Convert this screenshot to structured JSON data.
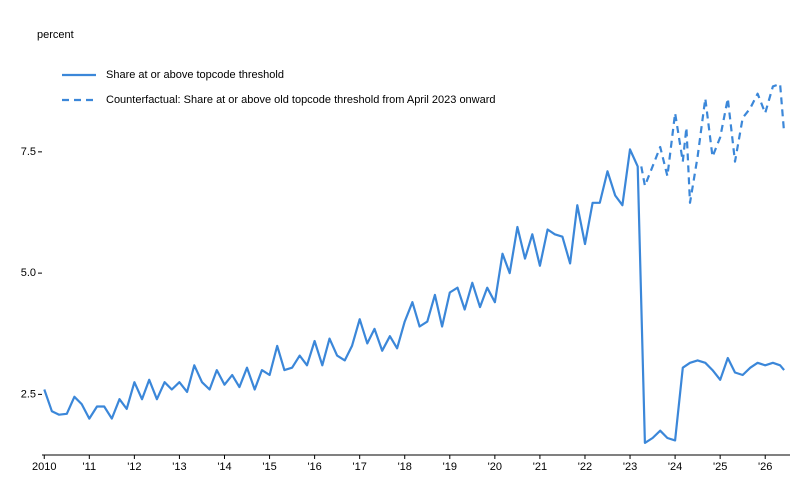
{
  "chart_data": {
    "type": "line",
    "y_label": "percent",
    "xlim": [
      2009.95,
      2026.55
    ],
    "ylim": [
      1.25,
      9.6
    ],
    "xticks": [
      2010,
      {
        "value": 2011,
        "label": "'11"
      },
      {
        "value": 2012,
        "label": "'12"
      },
      {
        "value": 2013,
        "label": "'13"
      },
      {
        "value": 2014,
        "label": "'14"
      },
      {
        "value": 2015,
        "label": "'15"
      },
      {
        "value": 2016,
        "label": "'16"
      },
      {
        "value": 2017,
        "label": "'17"
      },
      {
        "value": 2018,
        "label": "'18"
      },
      {
        "value": 2019,
        "label": "'19"
      },
      {
        "value": 2020,
        "label": "'20"
      },
      {
        "value": 2021,
        "label": "'21"
      },
      {
        "value": 2022,
        "label": "'22"
      },
      {
        "value": 2023,
        "label": "'23"
      },
      {
        "value": 2024,
        "label": "'24"
      },
      {
        "value": 2025,
        "label": "'25"
      },
      {
        "value": 2026,
        "label": "'26"
      }
    ],
    "yticks": [
      2.5,
      {
        "value": 5,
        "label": "5.0"
      },
      7.5
    ],
    "legend": "upper left",
    "series": [
      {
        "name": "Share at or above topcode threshold",
        "color": "#3b87d9",
        "dashed": false,
        "x": [
          2010.0,
          2010.17,
          2010.33,
          2010.5,
          2010.67,
          2010.83,
          2011.0,
          2011.17,
          2011.33,
          2011.5,
          2011.67,
          2011.83,
          2012.0,
          2012.17,
          2012.33,
          2012.5,
          2012.67,
          2012.83,
          2013.0,
          2013.17,
          2013.33,
          2013.5,
          2013.67,
          2013.83,
          2014.0,
          2014.17,
          2014.33,
          2014.5,
          2014.67,
          2014.83,
          2015.0,
          2015.17,
          2015.33,
          2015.5,
          2015.67,
          2015.83,
          2016.0,
          2016.17,
          2016.33,
          2016.5,
          2016.67,
          2016.83,
          2017.0,
          2017.17,
          2017.33,
          2017.5,
          2017.67,
          2017.83,
          2018.0,
          2018.17,
          2018.33,
          2018.5,
          2018.67,
          2018.83,
          2019.0,
          2019.17,
          2019.33,
          2019.5,
          2019.67,
          2019.83,
          2020.0,
          2020.17,
          2020.33,
          2020.5,
          2020.67,
          2020.83,
          2021.0,
          2021.17,
          2021.33,
          2021.5,
          2021.67,
          2021.83,
          2022.0,
          2022.17,
          2022.33,
          2022.5,
          2022.67,
          2022.83,
          2023.0,
          2023.17,
          2023.33,
          2023.5,
          2023.67,
          2023.83,
          2024.0,
          2024.17,
          2024.33,
          2024.5,
          2024.67,
          2024.83,
          2025.0,
          2025.17,
          2025.33,
          2025.5,
          2025.67,
          2025.83,
          2026.0,
          2026.17,
          2026.33,
          2026.42
        ],
        "values": [
          2.6,
          2.15,
          2.08,
          2.1,
          2.45,
          2.3,
          2.0,
          2.25,
          2.25,
          2.0,
          2.4,
          2.2,
          2.75,
          2.4,
          2.8,
          2.4,
          2.75,
          2.6,
          2.75,
          2.55,
          3.1,
          2.75,
          2.6,
          3.0,
          2.7,
          2.9,
          2.65,
          3.05,
          2.6,
          3.0,
          2.9,
          3.5,
          3.0,
          3.05,
          3.3,
          3.1,
          3.6,
          3.1,
          3.65,
          3.3,
          3.2,
          3.5,
          4.05,
          3.55,
          3.85,
          3.4,
          3.7,
          3.45,
          4.0,
          4.4,
          3.9,
          4.0,
          4.55,
          3.9,
          4.6,
          4.7,
          4.25,
          4.8,
          4.3,
          4.7,
          4.4,
          5.4,
          5.0,
          5.95,
          5.3,
          5.8,
          5.15,
          5.9,
          5.8,
          5.75,
          5.2,
          6.4,
          5.6,
          6.45,
          6.45,
          7.1,
          6.6,
          6.4,
          7.55,
          7.2,
          1.5,
          1.6,
          1.75,
          1.6,
          1.55,
          3.05,
          3.15,
          3.2,
          3.15,
          3.0,
          2.8,
          3.25,
          2.95,
          2.9,
          3.05,
          3.15,
          3.1,
          3.15,
          3.1,
          3.0
        ]
      },
      {
        "name": "Counterfactual: Share at or above old topcode threshold from April 2023 onward",
        "color": "#3b87d9",
        "dashed": true,
        "x": [
          2023.25,
          2023.33,
          2023.5,
          2023.67,
          2023.83,
          2024.0,
          2024.17,
          2024.25,
          2024.33,
          2024.5,
          2024.67,
          2024.83,
          2025.0,
          2025.17,
          2025.33,
          2025.5,
          2025.67,
          2025.83,
          2026.0,
          2026.17,
          2026.33,
          2026.42
        ],
        "values": [
          7.2,
          6.8,
          7.2,
          7.6,
          7.0,
          8.3,
          7.3,
          8.0,
          6.45,
          7.4,
          8.6,
          7.4,
          7.8,
          8.6,
          7.3,
          8.2,
          8.4,
          8.7,
          8.3,
          8.85,
          8.9,
          7.9
        ]
      }
    ]
  }
}
